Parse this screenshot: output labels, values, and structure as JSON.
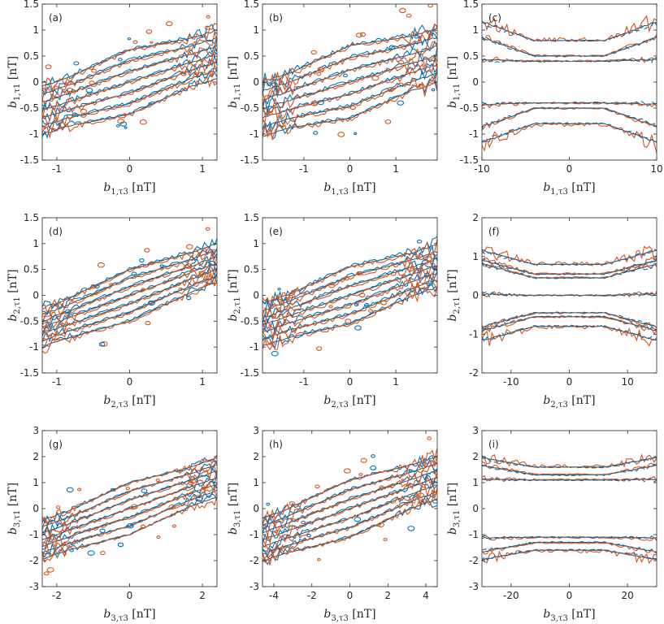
{
  "figure": {
    "colors": {
      "model": "#0072BD",
      "data": "#D95319",
      "center": "#4a4a4a"
    },
    "unit": "[nT]"
  },
  "chart_data": [
    {
      "id": "a",
      "panel_label": "(a)",
      "type": "contour",
      "xlabel": "b_{1,τ3} [nT]",
      "x_var": "b",
      "x_sub": "1,τ3",
      "ylabel": "b_{1,τ1} [nT]",
      "y_var": "b",
      "y_sub": "1,τ1",
      "xlim": [
        -1.2,
        1.2
      ],
      "ylim": [
        -1.5,
        1.5
      ],
      "xticks": [
        -1,
        0,
        1
      ],
      "xtick_labels": [
        "-1",
        "0",
        "1"
      ],
      "yticks": [
        -1.5,
        -1,
        -0.5,
        0,
        0.5,
        1,
        1.5
      ],
      "ytick_labels": [
        "-1.5",
        "-1",
        "-0.5",
        "0",
        "0.5",
        "1",
        "1.5"
      ],
      "slope": 0.45,
      "half_width": 0.62,
      "sat": 0.85,
      "noise": 0.07
    },
    {
      "id": "b",
      "panel_label": "(b)",
      "type": "contour",
      "xlabel": "b_{1,τ3} [nT]",
      "x_var": "b",
      "x_sub": "1,τ3",
      "ylabel": "b_{1,τ1} [nT]",
      "y_var": "b",
      "y_sub": "1,τ1",
      "xlim": [
        -1.9,
        1.9
      ],
      "ylim": [
        -1.5,
        1.5
      ],
      "xticks": [
        -1,
        0,
        1
      ],
      "xtick_labels": [
        "-1",
        "0",
        "1"
      ],
      "yticks": [
        -1.5,
        -1,
        -0.5,
        0,
        0.5,
        1,
        1.5
      ],
      "ytick_labels": [
        "-1.5",
        "-1",
        "-0.5",
        "0",
        "0.5",
        "1",
        "1.5"
      ],
      "slope": 0.27,
      "half_width": 0.7,
      "sat": 1.3,
      "noise": 0.09
    },
    {
      "id": "c",
      "panel_label": "(c)",
      "type": "contour",
      "xlabel": "b_{1,τ3} [nT]",
      "x_var": "b",
      "x_sub": "1,τ3",
      "ylabel": "b_{1,τ1} [nT]",
      "y_var": "b",
      "y_sub": "1,τ1",
      "xlim": [
        -10,
        10
      ],
      "ylim": [
        -1.5,
        1.5
      ],
      "xticks": [
        -10,
        0,
        10
      ],
      "xtick_labels": [
        "-10",
        "0",
        "10"
      ],
      "yticks": [
        -1.5,
        -1,
        -0.5,
        0,
        0.5,
        1,
        1.5
      ],
      "ytick_labels": [
        "-1.5",
        "-1",
        "-0.5",
        "0",
        "0.5",
        "1",
        "1.5"
      ],
      "slope": 0.0,
      "levels": [
        0.4,
        0.5,
        0.8
      ],
      "sat": 4,
      "noise": 0.06
    },
    {
      "id": "d",
      "panel_label": "(d)",
      "type": "contour",
      "xlabel": "b_{2,τ3} [nT]",
      "x_var": "b",
      "x_sub": "2,τ3",
      "ylabel": "b_{2,τ1} [nT]",
      "y_var": "b",
      "y_sub": "2,τ1",
      "xlim": [
        -1.2,
        1.2
      ],
      "ylim": [
        -1.5,
        1.5
      ],
      "xticks": [
        -1,
        0,
        1
      ],
      "xtick_labels": [
        "-1",
        "0",
        "1"
      ],
      "yticks": [
        -1.5,
        -1,
        -0.5,
        0,
        0.5,
        1,
        1.5
      ],
      "ytick_labels": [
        "-1.5",
        "-1",
        "-0.5",
        "0",
        "0.5",
        "1",
        "1.5"
      ],
      "slope": 0.52,
      "half_width": 0.5,
      "sat": 0.9,
      "noise": 0.06
    },
    {
      "id": "e",
      "panel_label": "(e)",
      "type": "contour",
      "xlabel": "b_{2,τ3} [nT]",
      "x_var": "b",
      "x_sub": "2,τ3",
      "ylabel": "b_{2,τ1} [nT]",
      "y_var": "b",
      "y_sub": "2,τ1",
      "xlim": [
        -1.9,
        1.9
      ],
      "ylim": [
        -1.5,
        1.5
      ],
      "xticks": [
        -1,
        0,
        1
      ],
      "xtick_labels": [
        "-1",
        "0",
        "1"
      ],
      "yticks": [
        -1.5,
        -1,
        -0.5,
        0,
        0.5,
        1,
        1.5
      ],
      "ytick_labels": [
        "-1.5",
        "-1",
        "-0.5",
        "0",
        "0.5",
        "1",
        "1.5"
      ],
      "slope": 0.3,
      "half_width": 0.55,
      "sat": 1.4,
      "noise": 0.08
    },
    {
      "id": "f",
      "panel_label": "(f)",
      "type": "contour",
      "xlabel": "b_{2,τ3} [nT]",
      "x_var": "b",
      "x_sub": "2,τ3",
      "ylabel": "b_{2,τ1} [nT]",
      "y_var": "b",
      "y_sub": "2,τ1",
      "xlim": [
        -15,
        15
      ],
      "ylim": [
        -2,
        2
      ],
      "xticks": [
        -10,
        0,
        10
      ],
      "xtick_labels": [
        "-10",
        "0",
        "10"
      ],
      "yticks": [
        -2,
        -1,
        0,
        1,
        2
      ],
      "ytick_labels": [
        "-2",
        "-1",
        "0",
        "1",
        "2"
      ],
      "slope": 0.0,
      "levels": [
        0.0,
        0.45,
        0.55,
        0.8
      ],
      "sat": 6,
      "noise": 0.08
    },
    {
      "id": "g",
      "panel_label": "(g)",
      "type": "contour",
      "xlabel": "b_{3,τ3} [nT]",
      "x_var": "b",
      "x_sub": "3,τ3",
      "ylabel": "b_{3,τ1} [nT]",
      "y_var": "b",
      "y_sub": "3,τ1",
      "xlim": [
        -2.4,
        2.4
      ],
      "ylim": [
        -3,
        3
      ],
      "xticks": [
        -2,
        0,
        2
      ],
      "xtick_labels": [
        "-2",
        "0",
        "2"
      ],
      "yticks": [
        -3,
        -2,
        -1,
        0,
        1,
        2,
        3
      ],
      "ytick_labels": [
        "-3",
        "-2",
        "-1",
        "0",
        "1",
        "2",
        "3"
      ],
      "slope": 0.5,
      "half_width": 1.0,
      "sat": 1.7,
      "noise": 0.12
    },
    {
      "id": "h",
      "panel_label": "(h)",
      "type": "contour",
      "xlabel": "b_{3,τ3} [nT]",
      "x_var": "b",
      "x_sub": "3,τ3",
      "ylabel": "b_{3,τ1} [nT]",
      "y_var": "b",
      "y_sub": "3,τ1",
      "xlim": [
        -4.6,
        4.6
      ],
      "ylim": [
        -3,
        3
      ],
      "xticks": [
        -4,
        -2,
        0,
        2,
        4
      ],
      "xtick_labels": [
        "-4",
        "-2",
        "0",
        "2",
        "4"
      ],
      "yticks": [
        -3,
        -2,
        -1,
        0,
        1,
        2,
        3
      ],
      "ytick_labels": [
        "-3",
        "-2",
        "-1",
        "0",
        "1",
        "2",
        "3"
      ],
      "slope": 0.26,
      "half_width": 1.1,
      "sat": 3.5,
      "noise": 0.15
    },
    {
      "id": "i",
      "panel_label": "(i)",
      "type": "contour",
      "xlabel": "b_{3,τ3} [nT]",
      "x_var": "b",
      "x_sub": "3,τ3",
      "ylabel": "b_{3,τ1} [nT]",
      "y_var": "b",
      "y_sub": "3,τ1",
      "xlim": [
        -30,
        30
      ],
      "ylim": [
        -3,
        3
      ],
      "xticks": [
        -20,
        0,
        20
      ],
      "xtick_labels": [
        "-20",
        "0",
        "20"
      ],
      "yticks": [
        -3,
        -2,
        -1,
        0,
        1,
        2,
        3
      ],
      "ytick_labels": [
        "-3",
        "-2",
        "-1",
        "0",
        "1",
        "2",
        "3"
      ],
      "slope": 0.0,
      "levels": [
        1.1,
        1.3,
        1.6
      ],
      "sat": 12,
      "noise": 0.1
    }
  ]
}
